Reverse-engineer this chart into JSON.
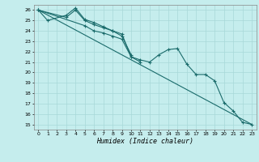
{
  "xlabel": "Humidex (Indice chaleur)",
  "xlim": [
    -0.5,
    23.5
  ],
  "ylim": [
    14.5,
    26.5
  ],
  "yticks": [
    15,
    16,
    17,
    18,
    19,
    20,
    21,
    22,
    23,
    24,
    25,
    26
  ],
  "xticks": [
    0,
    1,
    2,
    3,
    4,
    5,
    6,
    7,
    8,
    9,
    10,
    11,
    12,
    13,
    14,
    15,
    16,
    17,
    18,
    19,
    20,
    21,
    22,
    23
  ],
  "bg_color": "#c5eded",
  "grid_color": "#a8d8d8",
  "line_color": "#1a6b6b",
  "series_a": {
    "x": [
      0,
      1,
      3,
      4,
      5,
      6,
      7,
      8,
      9,
      10,
      11
    ],
    "y": [
      26.0,
      25.0,
      25.5,
      26.2,
      25.1,
      24.8,
      24.4,
      24.0,
      23.7,
      21.5,
      21.0
    ]
  },
  "series_b": {
    "x": [
      0,
      3,
      4,
      5,
      6,
      7,
      8,
      9,
      10
    ],
    "y": [
      26.0,
      25.3,
      26.0,
      25.0,
      24.6,
      24.3,
      24.0,
      23.5,
      21.7
    ]
  },
  "series_c": {
    "x": [
      0,
      5,
      6,
      7,
      8,
      9,
      10,
      11,
      12,
      13,
      14,
      15,
      16,
      17,
      18,
      19,
      20,
      21,
      22,
      23
    ],
    "y": [
      26.0,
      24.5,
      24.0,
      23.8,
      23.5,
      23.2,
      21.5,
      21.2,
      21.0,
      21.7,
      22.2,
      22.3,
      20.8,
      19.8,
      19.8,
      19.2,
      17.1,
      16.3,
      15.2,
      15.0
    ]
  },
  "series_d": {
    "x": [
      0,
      23
    ],
    "y": [
      26.0,
      15.0
    ]
  }
}
